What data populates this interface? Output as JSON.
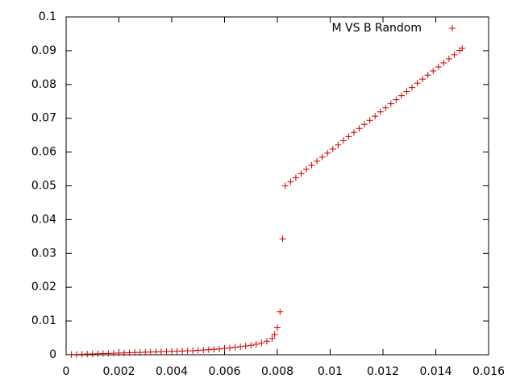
{
  "chart_data": {
    "type": "scatter",
    "series": [
      {
        "name": "M VS B Random",
        "color": "#cc0000",
        "x": [
          0.0002,
          0.0004,
          0.0006,
          0.0008,
          0.001,
          0.0012,
          0.0014,
          0.0016,
          0.0018,
          0.002,
          0.0022,
          0.0024,
          0.0026,
          0.0028,
          0.003,
          0.0032,
          0.0034,
          0.0036,
          0.0038,
          0.004,
          0.0042,
          0.0044,
          0.0046,
          0.0048,
          0.005,
          0.0052,
          0.0054,
          0.0056,
          0.0058,
          0.006,
          0.0062,
          0.0064,
          0.0066,
          0.0068,
          0.007,
          0.0072,
          0.0074,
          0.0076,
          0.0078,
          0.0079,
          0.008,
          0.0081,
          0.0082,
          0.0083,
          0.0085,
          0.0087,
          0.0089,
          0.0091,
          0.0093,
          0.0095,
          0.0097,
          0.0099,
          0.0101,
          0.0103,
          0.0105,
          0.0107,
          0.0109,
          0.0111,
          0.0113,
          0.0115,
          0.0117,
          0.0119,
          0.0121,
          0.0123,
          0.0125,
          0.0127,
          0.0129,
          0.0131,
          0.0133,
          0.0135,
          0.0137,
          0.0139,
          0.0141,
          0.0143,
          0.0145,
          0.0147,
          0.0149,
          0.015
        ],
        "values": [
          5e-05,
          0.0001,
          0.00015,
          0.0002,
          0.00025,
          0.0003,
          0.00035,
          0.0004,
          0.00045,
          0.0005,
          0.00055,
          0.0006,
          0.00065,
          0.0007,
          0.00075,
          0.0008,
          0.00085,
          0.0009,
          0.00095,
          0.001,
          0.00105,
          0.0011,
          0.00115,
          0.0012,
          0.0013,
          0.0014,
          0.0015,
          0.0016,
          0.0017,
          0.0019,
          0.002,
          0.0022,
          0.0024,
          0.0026,
          0.0028,
          0.0031,
          0.0035,
          0.004,
          0.0048,
          0.006,
          0.008,
          0.0127,
          0.0343,
          0.05,
          0.0512,
          0.0524,
          0.0536,
          0.0549,
          0.0561,
          0.0573,
          0.0585,
          0.0597,
          0.0609,
          0.0621,
          0.0634,
          0.0646,
          0.0658,
          0.067,
          0.0682,
          0.0694,
          0.0706,
          0.0719,
          0.0731,
          0.0743,
          0.0755,
          0.0767,
          0.0779,
          0.0791,
          0.0804,
          0.0816,
          0.0828,
          0.084,
          0.0852,
          0.0864,
          0.0876,
          0.0888,
          0.0901,
          0.0907
        ]
      }
    ],
    "xlim": [
      0,
      0.016
    ],
    "xticks": [
      0,
      0.002,
      0.004,
      0.006,
      0.008,
      0.01,
      0.012,
      0.014,
      0.016
    ],
    "ylim": [
      0,
      0.1
    ],
    "yticks": [
      0,
      0.01,
      0.02,
      0.03,
      0.04,
      0.05,
      0.06,
      0.07,
      0.08,
      0.09,
      0.1
    ],
    "legend": "top-right",
    "grid": false
  }
}
